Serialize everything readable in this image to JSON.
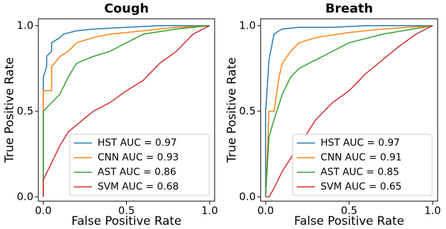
{
  "chart_data": [
    {
      "type": "line",
      "title": "Cough",
      "x_label": "False Positive Rate",
      "y_label": "True Positive Rate",
      "xlim": [
        -0.03,
        1.03
      ],
      "ylim": [
        -0.025,
        1.04
      ],
      "xticks": [
        {
          "value": 0,
          "label": "0.0"
        },
        {
          "value": 0.5,
          "label": "0.5"
        },
        {
          "value": 1,
          "label": "1.0"
        }
      ],
      "yticks": [
        {
          "value": 0,
          "label": "0.0"
        },
        {
          "value": 0.5,
          "label": "0.5"
        },
        {
          "value": 1,
          "label": "1.0"
        }
      ],
      "grid": false,
      "legend": "lower right",
      "series": [
        {
          "name": "HST AUC = 0.97",
          "color": "#1f77b4",
          "x": [
            0,
            0,
            0.02,
            0.02,
            0.05,
            0.05,
            0.1,
            0.12,
            0.2,
            0.3,
            0.5,
            0.7,
            1
          ],
          "values": [
            0,
            0.7,
            0.76,
            0.82,
            0.85,
            0.9,
            0.93,
            0.95,
            0.97,
            0.98,
            0.99,
            1,
            1
          ]
        },
        {
          "name": "CNN AUC = 0.93",
          "color": "#ff7f0e",
          "x": [
            0,
            0,
            0.05,
            0.05,
            0.1,
            0.15,
            0.2,
            0.3,
            0.4,
            0.6,
            0.8,
            1
          ],
          "values": [
            0,
            0.62,
            0.62,
            0.76,
            0.82,
            0.85,
            0.9,
            0.93,
            0.95,
            0.97,
            0.99,
            1
          ]
        },
        {
          "name": "AST AUC = 0.86",
          "color": "#2ca02c",
          "x": [
            0,
            0,
            0.05,
            0.1,
            0.15,
            0.2,
            0.3,
            0.4,
            0.5,
            0.6,
            0.8,
            1
          ],
          "values": [
            0,
            0.5,
            0.55,
            0.6,
            0.7,
            0.78,
            0.82,
            0.85,
            0.9,
            0.95,
            0.98,
            1
          ]
        },
        {
          "name": "SVM AUC = 0.68",
          "color": "#d62728",
          "x": [
            0,
            0,
            0.05,
            0.1,
            0.15,
            0.2,
            0.3,
            0.4,
            0.5,
            0.6,
            0.7,
            0.8,
            0.9,
            1
          ],
          "values": [
            0,
            0.1,
            0.2,
            0.3,
            0.38,
            0.42,
            0.5,
            0.55,
            0.62,
            0.68,
            0.78,
            0.85,
            0.95,
            1
          ]
        }
      ]
    },
    {
      "type": "line",
      "title": "Breath",
      "x_label": "False Positive Rate",
      "y_label": "True Positive Rate",
      "xlim": [
        -0.03,
        1.03
      ],
      "ylim": [
        -0.025,
        1.04
      ],
      "xticks": [
        {
          "value": 0,
          "label": "0.0"
        },
        {
          "value": 0.5,
          "label": "0.5"
        },
        {
          "value": 1,
          "label": "1.0"
        }
      ],
      "yticks": [
        {
          "value": 0,
          "label": "0.0"
        },
        {
          "value": 0.5,
          "label": "0.5"
        },
        {
          "value": 1,
          "label": "1.0"
        }
      ],
      "grid": false,
      "legend": "lower right",
      "series": [
        {
          "name": "HST AUC = 0.97",
          "color": "#1f77b4",
          "x": [
            0,
            0,
            0.02,
            0.05,
            0.08,
            0.1,
            0.2,
            0.4,
            0.6,
            1
          ],
          "values": [
            0,
            0.5,
            0.8,
            0.95,
            0.97,
            0.98,
            0.99,
            0.99,
            1,
            1
          ]
        },
        {
          "name": "CNN AUC = 0.91",
          "color": "#ff7f0e",
          "x": [
            0,
            0.02,
            0.05,
            0.08,
            0.1,
            0.15,
            0.2,
            0.3,
            0.5,
            0.7,
            1
          ],
          "values": [
            0,
            0.5,
            0.5,
            0.7,
            0.78,
            0.85,
            0.9,
            0.93,
            0.96,
            0.98,
            1
          ]
        },
        {
          "name": "AST AUC = 0.85",
          "color": "#2ca02c",
          "x": [
            0,
            0.02,
            0.05,
            0.1,
            0.15,
            0.2,
            0.3,
            0.4,
            0.5,
            0.7,
            1
          ],
          "values": [
            0,
            0.35,
            0.45,
            0.6,
            0.7,
            0.75,
            0.8,
            0.85,
            0.9,
            0.95,
            1
          ]
        },
        {
          "name": "SVM AUC = 0.65",
          "color": "#d62728",
          "x": [
            0,
            0.02,
            0.05,
            0.1,
            0.2,
            0.3,
            0.4,
            0.5,
            0.6,
            0.7,
            0.8,
            0.9,
            1
          ],
          "values": [
            0,
            0,
            0.05,
            0.15,
            0.3,
            0.45,
            0.55,
            0.62,
            0.72,
            0.8,
            0.88,
            0.95,
            1
          ]
        }
      ]
    }
  ]
}
